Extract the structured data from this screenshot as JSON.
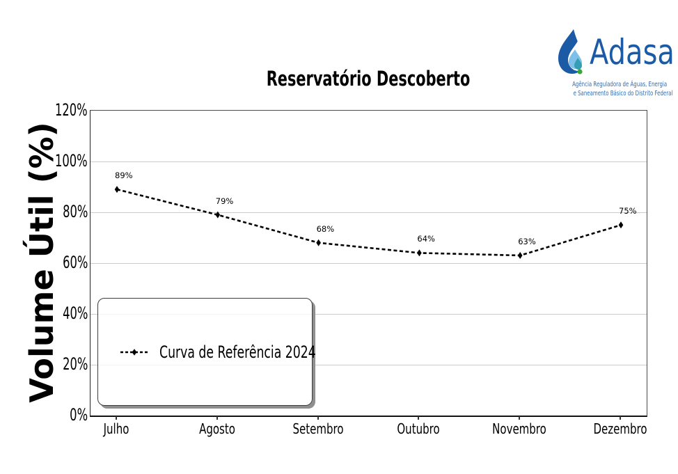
{
  "page": {
    "background": "#ffffff"
  },
  "header": {
    "title": "Reservatório Descoberto"
  },
  "logo": {
    "name": "Adasa",
    "tagline_line1": "Agência Reguladora de Águas, Energia",
    "tagline_line2": "e Saneamento Básico do Distrito Federal",
    "colors": {
      "primary_blue": "#1b5aa5",
      "tagline_blue": "#2e6cb5",
      "light_blue": "#7ec1e8",
      "teal": "#349fb4",
      "green": "#3aa639"
    }
  },
  "chart_data": {
    "type": "line",
    "title": "Reservatório Descoberto",
    "xlabel": "",
    "ylabel": "Volume Útil (%)",
    "categories": [
      "Julho",
      "Agosto",
      "Setembro",
      "Outubro",
      "Novembro",
      "Dezembro"
    ],
    "series": [
      {
        "name": "Curva de Referência 2024",
        "values": [
          89,
          79,
          68,
          64,
          63,
          75
        ],
        "color": "#000000",
        "line_style": "dashed",
        "marker": "thin-diamond"
      }
    ],
    "point_labels": [
      "89%",
      "79%",
      "68%",
      "64%",
      "63%",
      "75%"
    ],
    "ylim": [
      0,
      120
    ],
    "y_tick_step": 20,
    "y_tick_labels": [
      "0%",
      "20%",
      "40%",
      "60%",
      "80%",
      "100%",
      "120%"
    ],
    "grid": true,
    "grid_color": "#cbcbcb",
    "legend": {
      "label": "Curva de Referência 2024",
      "position": "lower-left"
    }
  }
}
